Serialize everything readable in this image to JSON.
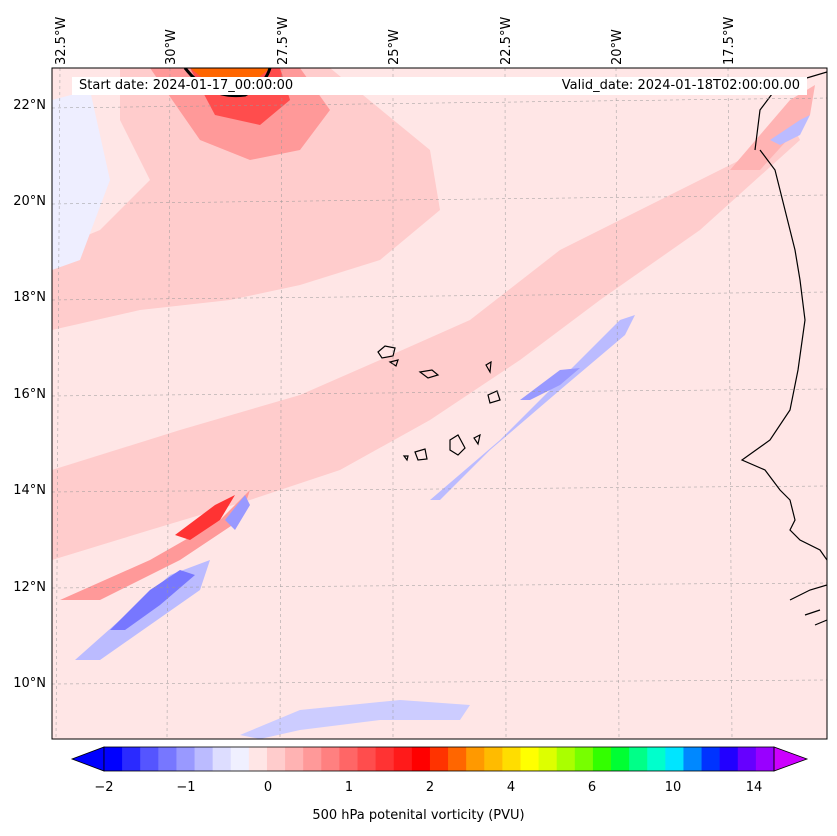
{
  "map": {
    "start_date": "Start date: 2024-01-17_00:00:00",
    "valid_date": "Valid_date: 2024-01-18T02:00:00.00",
    "lon_labels": [
      "32.5°W",
      "30°W",
      "27.5°W",
      "25°W",
      "22.5°W",
      "20°W",
      "17.5°W"
    ],
    "lat_labels": [
      "22°N",
      "20°N",
      "18°N",
      "16°N",
      "14°N",
      "12°N",
      "10°N"
    ]
  },
  "colorbar": {
    "label": "500 hPa potenital vorticity (PVU)",
    "ticks": [
      "−2",
      "−1",
      "0",
      "1",
      "2",
      "4",
      "6",
      "10",
      "14"
    ],
    "colors": [
      "#0000ff",
      "#2a2aff",
      "#5555ff",
      "#7777ff",
      "#9999ff",
      "#bbbbff",
      "#ddddff",
      "#f0f0ff",
      "#ffe6e6",
      "#ffcccc",
      "#ffb3b3",
      "#ff9999",
      "#ff8080",
      "#ff6666",
      "#ff4d4d",
      "#ff3333",
      "#ff1a1a",
      "#ff0000",
      "#ff3300",
      "#ff6600",
      "#ff9900",
      "#ffbb00",
      "#ffdd00",
      "#ffff00",
      "#ddff00",
      "#aaff00",
      "#77ff00",
      "#33ff00",
      "#00ff33",
      "#00ff88",
      "#00ffcc",
      "#00e5ff",
      "#0088ff",
      "#0033ff",
      "#2200ff",
      "#6600ff",
      "#9900ff"
    ],
    "min_arrow_color": "#0000ff",
    "max_arrow_color": "#cc00ff"
  }
}
